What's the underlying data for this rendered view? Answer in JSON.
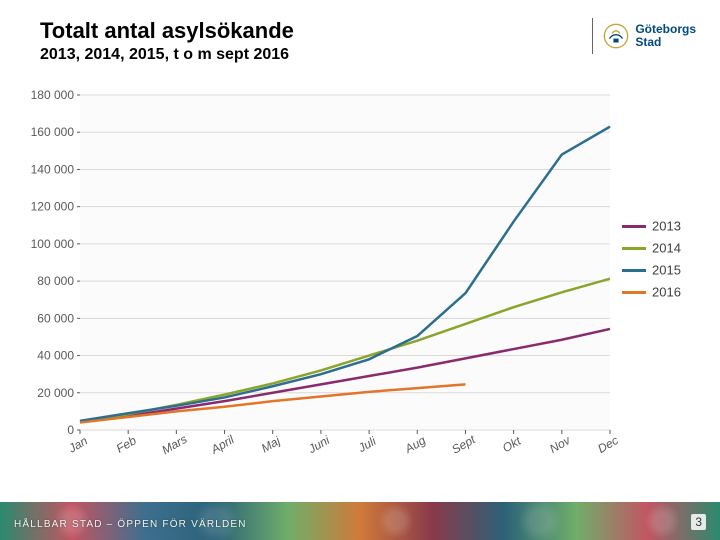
{
  "header": {
    "title": "Totalt antal asylsökande",
    "subtitle": "2013, 2014, 2015, t o m sept 2016"
  },
  "logo": {
    "text_top": "Göteborgs",
    "text_bottom": "Stad"
  },
  "footer": {
    "tagline": "HÅLLBAR STAD – ÖPPEN FÖR VÄRLDEN",
    "page_number": "3"
  },
  "chart": {
    "type": "line",
    "background_color": "#fbfbfb",
    "grid_color": "#d9d9d9",
    "tick_font_color": "#595959",
    "tick_fontsize": 12,
    "ylim": [
      0,
      180000
    ],
    "ytick_step": 20000,
    "ytick_labels": [
      "0",
      "20 000",
      "40 000",
      "60 000",
      "80 000",
      "100 000",
      "120 000",
      "140 000",
      "160 000",
      "180 000"
    ],
    "categories": [
      "Jan",
      "Feb",
      "Mars",
      "April",
      "Maj",
      "Juni",
      "Juli",
      "Aug",
      "Sept",
      "Okt",
      "Nov",
      "Dec"
    ],
    "x_label_italic": true,
    "x_label_rotation": -30,
    "line_width": 2.5,
    "legend_position": "right",
    "legend_fontsize": 13,
    "series": [
      {
        "name": "2013",
        "color": "#8a2a6e",
        "values": [
          4300,
          7500,
          11500,
          15500,
          20000,
          24500,
          29000,
          33500,
          38500,
          43500,
          48500,
          54300
        ]
      },
      {
        "name": "2014",
        "color": "#8aa52b",
        "values": [
          4500,
          8500,
          13500,
          19000,
          25000,
          32000,
          40000,
          48000,
          57000,
          66000,
          74000,
          81300
        ]
      },
      {
        "name": "2015",
        "color": "#2c6e8f",
        "values": [
          4900,
          9000,
          13000,
          17500,
          23500,
          30000,
          38000,
          50500,
          73500,
          112000,
          148000,
          163000
        ]
      },
      {
        "name": "2016",
        "color": "#e1762a",
        "values": [
          4000,
          7000,
          10000,
          12500,
          15500,
          18000,
          20500,
          22500,
          24500
        ]
      }
    ]
  }
}
